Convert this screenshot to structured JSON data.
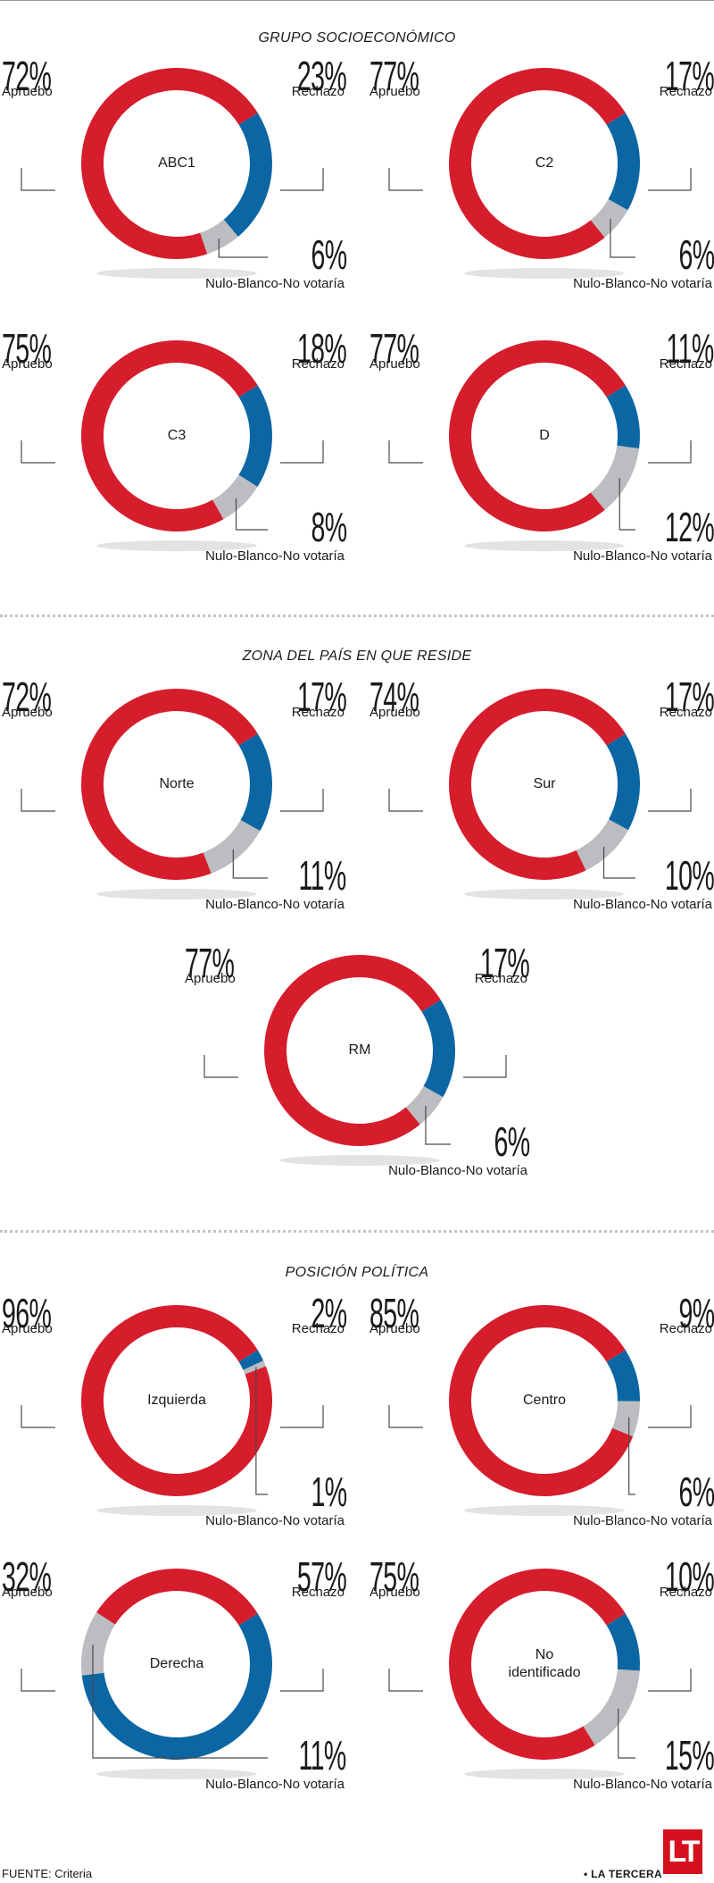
{
  "colors": {
    "apruebo": "#d61d2c",
    "rechazo": "#0b66a3",
    "nulo": "#bcbdc0",
    "leader": "#4a4a4a",
    "shadow": "#e3e3e3"
  },
  "sections": [
    {
      "title": "GRUPO SOCIOECONÓMICO"
    },
    {
      "title": "ZONA DEL PAÍS EN QUE RESIDE"
    },
    {
      "title": "POSICIÓN POLÍTICA"
    }
  ],
  "footer": {
    "source": "FUENTE: Criteria",
    "brand": "• LA TERCERA",
    "logo": "LT"
  },
  "chart_data": [
    {
      "type": "pie",
      "title": "ABC1",
      "categories": [
        "Apruebo",
        "Rechazo",
        "Nulo-Blanco-No votaría"
      ],
      "values": [
        72,
        23,
        6
      ],
      "value_labels": [
        "72%",
        "23%",
        "6%"
      ]
    },
    {
      "type": "pie",
      "title": "C2",
      "categories": [
        "Apruebo",
        "Rechazo",
        "Nulo-Blanco-No votaría"
      ],
      "values": [
        77,
        17,
        6
      ],
      "value_labels": [
        "77%",
        "17%",
        "6%"
      ]
    },
    {
      "type": "pie",
      "title": "C3",
      "categories": [
        "Apruebo",
        "Rechazo",
        "Nulo-Blanco-No votaría"
      ],
      "values": [
        75,
        18,
        8
      ],
      "value_labels": [
        "75%",
        "18%",
        "8%"
      ]
    },
    {
      "type": "pie",
      "title": "D",
      "categories": [
        "Apruebo",
        "Rechazo",
        "Nulo-Blanco-No votaría"
      ],
      "values": [
        77,
        11,
        12
      ],
      "value_labels": [
        "77%",
        "11%",
        "12%"
      ]
    },
    {
      "type": "pie",
      "title": "Norte",
      "categories": [
        "Apruebo",
        "Rechazo",
        "Nulo-Blanco-No votaría"
      ],
      "values": [
        72,
        17,
        11
      ],
      "value_labels": [
        "72%",
        "17%",
        "11%"
      ]
    },
    {
      "type": "pie",
      "title": "Sur",
      "categories": [
        "Apruebo",
        "Rechazo",
        "Nulo-Blanco-No votaría"
      ],
      "values": [
        74,
        17,
        10
      ],
      "value_labels": [
        "74%",
        "17%",
        "10%"
      ]
    },
    {
      "type": "pie",
      "title": "RM",
      "categories": [
        "Apruebo",
        "Rechazo",
        "Nulo-Blanco-No votaría"
      ],
      "values": [
        77,
        17,
        6
      ],
      "value_labels": [
        "77%",
        "17%",
        "6%"
      ]
    },
    {
      "type": "pie",
      "title": "Izquierda",
      "categories": [
        "Apruebo",
        "Rechazo",
        "Nulo-Blanco-No votaría"
      ],
      "values": [
        96,
        2,
        1
      ],
      "value_labels": [
        "96%",
        "2%",
        "1%"
      ]
    },
    {
      "type": "pie",
      "title": "Centro",
      "categories": [
        "Apruebo",
        "Rechazo",
        "Nulo-Blanco-No votaría"
      ],
      "values": [
        85,
        9,
        6
      ],
      "value_labels": [
        "85%",
        "9%",
        "6%"
      ]
    },
    {
      "type": "pie",
      "title": "Derecha",
      "categories": [
        "Apruebo",
        "Rechazo",
        "Nulo-Blanco-No votaría"
      ],
      "values": [
        32,
        57,
        11
      ],
      "value_labels": [
        "32%",
        "57%",
        "11%"
      ]
    },
    {
      "type": "pie",
      "title": "No identificado",
      "categories": [
        "Apruebo",
        "Rechazo",
        "Nulo-Blanco-No votaría"
      ],
      "values": [
        75,
        10,
        15
      ],
      "value_labels": [
        "75%",
        "10%",
        "15%"
      ]
    }
  ]
}
